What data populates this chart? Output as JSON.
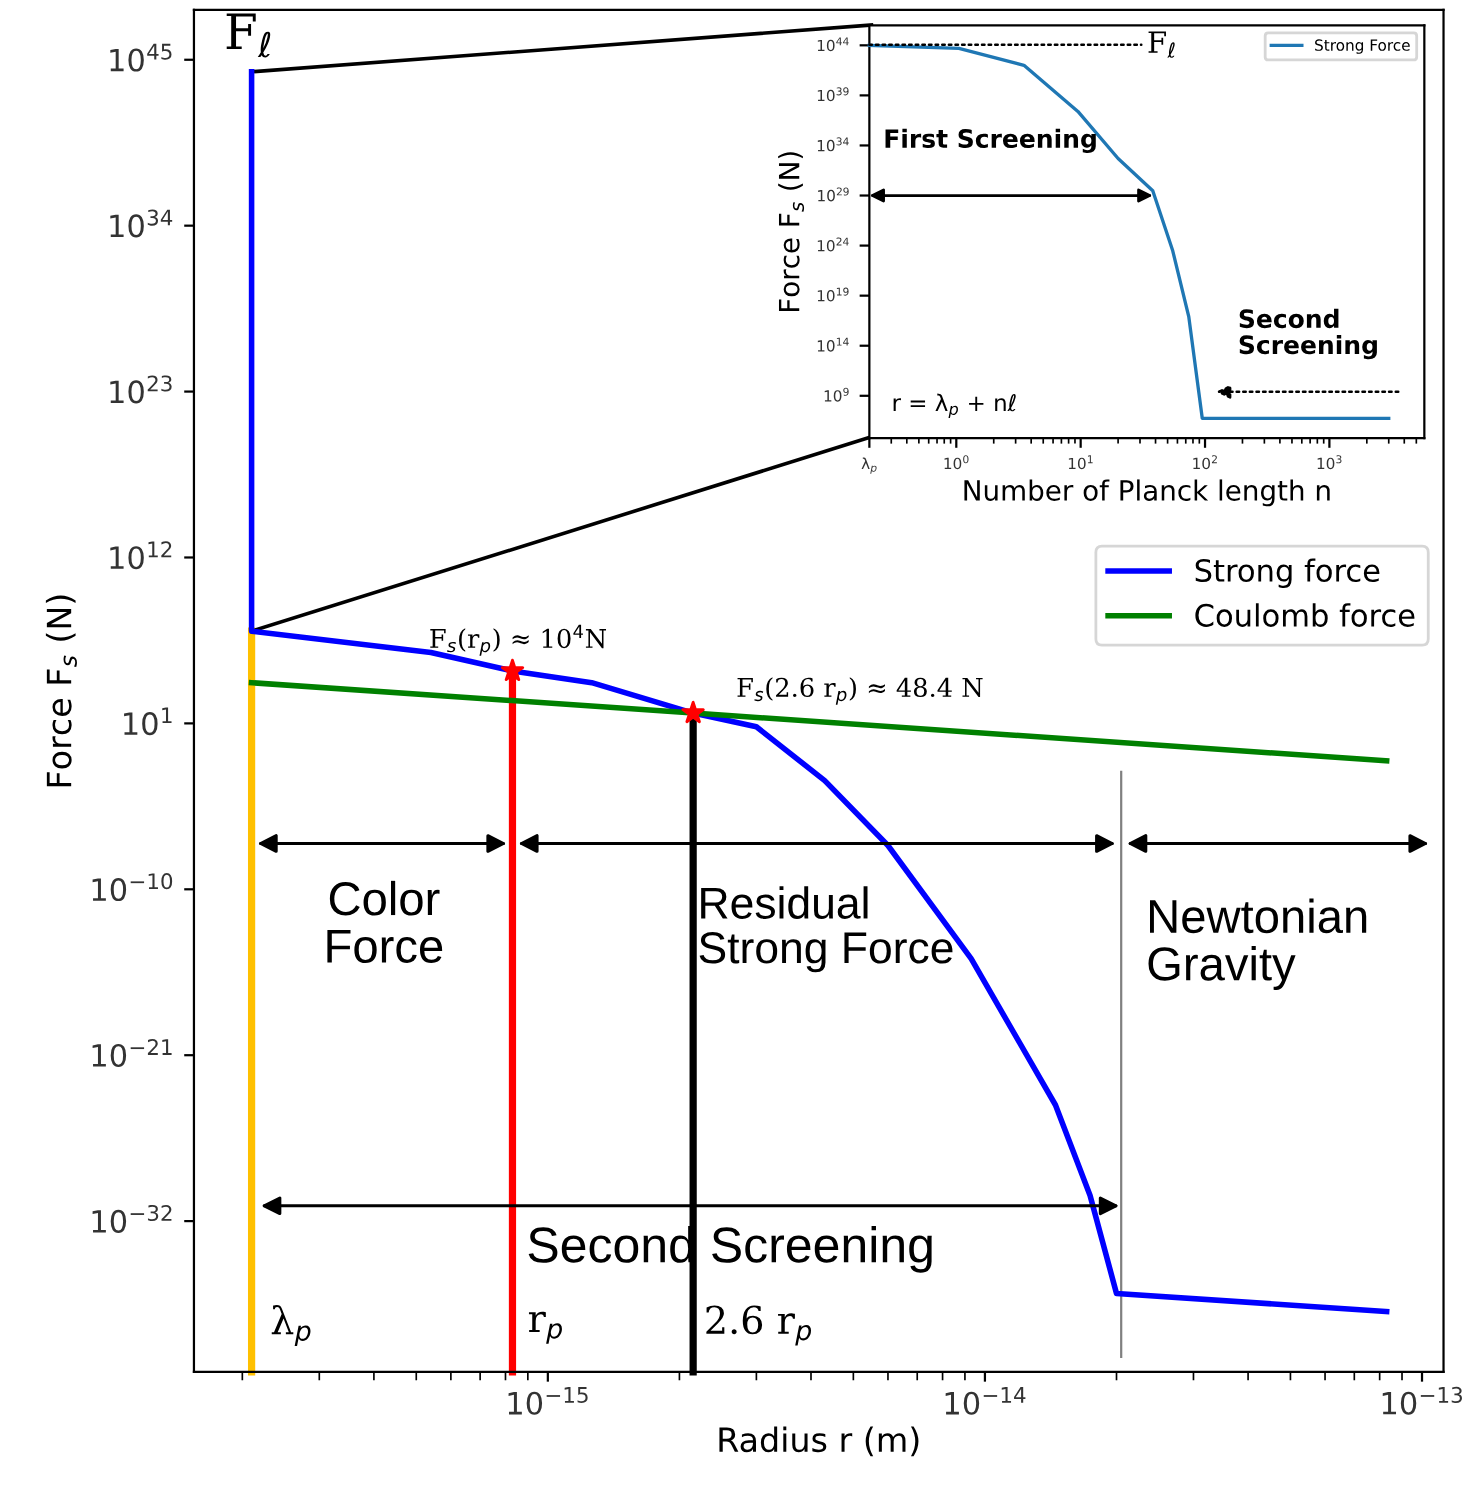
{
  "chart_data": [
    {
      "type": "line",
      "xlabel": "Radius r (m)",
      "ylabel": "Force F$_{s}$ (N)",
      "log": "xy",
      "xlim": [
        1.55e-16,
        1.12e-13
      ],
      "ylim": [
        1e-42,
        2e+48
      ],
      "xticks": [
        {
          "value": 1e-15,
          "label": "10$^{−15}$"
        },
        {
          "value": 1e-14,
          "label": "10$^{−14}$"
        },
        {
          "value": 1e-13,
          "label": "10$^{−13}$"
        }
      ],
      "yticks": [
        {
          "value": 1e-32,
          "label": "10$^{−32}$"
        },
        {
          "value": 1e-21,
          "label": "10$^{−21}$"
        },
        {
          "value": 1e-10,
          "label": "10$^{−10}$"
        },
        {
          "value": 10,
          "label": "10$^{1}$"
        },
        {
          "value": 1000000000000.0,
          "label": "10$^{12}$"
        },
        {
          "value": 1e+23,
          "label": "10$^{23}$"
        },
        {
          "value": 1e+34,
          "label": "10$^{34}$"
        },
        {
          "value": 1e+45,
          "label": "10$^{45}$"
        }
      ],
      "legend": "right",
      "series": [
        {
          "name": "Strong force",
          "color": "#0000ff",
          "x": [
            2.1e-16,
            2.1e-16,
            5.4e-16,
            8.3e-16,
            1.26e-15,
            2.15e-15,
            3e-15,
            4.3e-15,
            6e-15,
            9.3e-15,
            1.45e-14,
            1.74e-14,
            2e-14,
            8.3e-14
          ],
          "values": [
            1.6e+44,
            13000000.0,
            500000.0,
            30000.0,
            5000.0,
            48.4,
            6,
            0.0016,
            8e-08,
            2.5e-15,
            5e-25,
            5e-31,
            1.6e-37,
            1e-38
          ]
        },
        {
          "name": "Coulomb force",
          "color": "#008000",
          "x": [
            2.1e-16,
            2.15e-15,
            8.3e-14
          ],
          "values": [
            5000,
            48.4,
            0.033
          ]
        },
        {
          "color": "#ffc000",
          "x": [
            2.1e-16,
            2.1e-16
          ],
          "values": [
            1e-42,
            13000000.0
          ]
        },
        {
          "color": "#ff0000",
          "x": [
            8.3e-16,
            8.3e-16
          ],
          "values": [
            1e-42,
            30000.0
          ]
        },
        {
          "color": "#000000",
          "x": [
            2.15e-15,
            2.15e-15
          ],
          "values": [
            1e-42,
            48.4
          ]
        },
        {
          "color": "#808080",
          "x": [
            2.05e-14,
            2.05e-14
          ],
          "values": [
            1e-41,
            0.006
          ]
        },
        {
          "color": "#000000",
          "x": [
            2.1e-16,
            5.5e-15
          ],
          "values": [
            1.6e+44,
            2e+47
          ]
        },
        {
          "color": "#000000",
          "x": [
            2.1e-16,
            5.5e-15
          ],
          "values": [
            13000000.0,
            1e+20
          ]
        },
        {
          "type": "scatter",
          "marker": "star",
          "color": "#ff0000",
          "x": [
            8.3e-16,
            2.15e-15
          ],
          "values": [
            30000.0,
            48.4
          ]
        }
      ],
      "annotations": [
        {
          "text": "F$_{ℓ}$",
          "x": 2.1e-16,
          "y": 1.6e+44
        },
        {
          "text": "F$_{s}$(r$_{p}$) ≈ 10$^{4}$N",
          "x": 8.3e-16,
          "y": 30000.0
        },
        "F$_{s}$(2.6 r$_{p}$) ≈ 48.4 N",
        "Color\nForce",
        "Residual\nStrong Force",
        "Newtonian\nGravity",
        "Second Screening",
        "λ$_{p}$",
        "r$_{p}$",
        "2.6 r$_{p}$"
      ]
    },
    {
      "type": "line",
      "xlabel": "Number of Planck length n",
      "ylabel": "Force F$_{s}$ (N)",
      "log": "xy",
      "xlim": [
        0.2,
        5800
      ],
      "ylim": [
        60000.0,
        1e+46
      ],
      "xticks": [
        {
          "value": 0.2,
          "label": "λ$_{p}$"
        },
        {
          "value": 1,
          "label": "10$^{0}$"
        },
        {
          "value": 10,
          "label": "10$^{1}$"
        },
        {
          "value": 100,
          "label": "10$^{2}$"
        },
        {
          "value": 1000,
          "label": "10$^{3}$"
        }
      ],
      "yticks": [
        {
          "value": 1000000000.0,
          "label": "10$^{9}$"
        },
        {
          "value": 100000000000000.0,
          "label": "10$^{14}$"
        },
        {
          "value": 1e+19,
          "label": "10$^{19}$"
        },
        {
          "value": 1e+24,
          "label": "10$^{24}$"
        },
        {
          "value": 1e+29,
          "label": "10$^{29}$"
        },
        {
          "value": 1e+34,
          "label": "10$^{34}$"
        },
        {
          "value": 1e+39,
          "label": "10$^{39}$"
        },
        {
          "value": 1e+44,
          "label": "10$^{44}$"
        }
      ],
      "legend": "top right",
      "series": [
        {
          "name": "Strong Force",
          "color": "#1f77b4",
          "x": [
            0.2,
            1.05,
            3.5,
            9.5,
            20,
            38,
            55,
            74,
            95,
            3000
          ],
          "values": [
            1e+44,
            5e+43,
            1e+42,
            2.5e+37,
            5e+32,
            3e+29,
            3e+23,
            8e+16,
            5600000.0,
            5600000.0
          ]
        }
      ],
      "annotations": [
        "F$_{ℓ}$",
        {
          "text": "First Screening",
          "x": 38,
          "y": 1e+29
        },
        "Second\nScreening",
        "r = λ$_{p}$ + nℓ"
      ]
    }
  ]
}
